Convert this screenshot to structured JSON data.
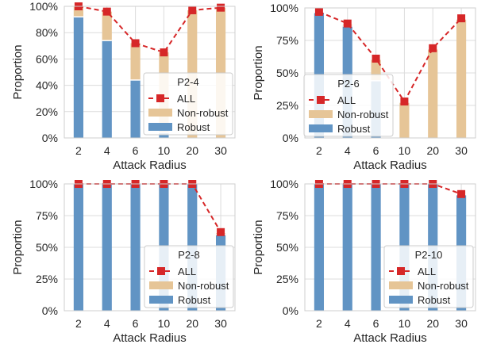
{
  "chart_data": [
    {
      "type": "bar",
      "title": "",
      "xlabel": "Attack Radius",
      "ylabel": "Proportion",
      "categories": [
        "2",
        "4",
        "6",
        "10",
        "20",
        "30"
      ],
      "ylim": [
        0,
        100
      ],
      "yticks": [
        "0%",
        "20%",
        "40%",
        "60%",
        "80%",
        "100%"
      ],
      "grid": true,
      "legend": {
        "title": "P2-4",
        "position": "center-right",
        "entries": [
          "ALL",
          "Non-robust",
          "Robust"
        ]
      },
      "series": [
        {
          "name": "Robust",
          "kind": "stacked-bar",
          "values": [
            92,
            74,
            44,
            4,
            0,
            0
          ]
        },
        {
          "name": "Non-robust",
          "kind": "stacked-bar",
          "values": [
            8,
            22,
            28,
            61,
            97,
            99
          ]
        },
        {
          "name": "ALL",
          "kind": "line",
          "values": [
            100,
            96,
            72,
            65,
            97,
            99
          ]
        }
      ]
    },
    {
      "type": "bar",
      "title": "",
      "xlabel": "Attack Radius",
      "ylabel": "Proportion",
      "categories": [
        "2",
        "4",
        "6",
        "10",
        "20",
        "30"
      ],
      "ylim": [
        0,
        100
      ],
      "yticks": [
        "0%",
        "25%",
        "50%",
        "75%",
        "100%"
      ],
      "grid": true,
      "legend": {
        "title": "P2-6",
        "position": "bottom-right",
        "entries": [
          "ALL",
          "Non-robust",
          "Robust"
        ]
      },
      "series": [
        {
          "name": "Robust",
          "kind": "stacked-bar",
          "values": [
            96,
            86,
            44,
            0,
            0,
            0
          ]
        },
        {
          "name": "Non-robust",
          "kind": "stacked-bar",
          "values": [
            0,
            1,
            16,
            27,
            68,
            91
          ]
        },
        {
          "name": "ALL",
          "kind": "line",
          "values": [
            97,
            88,
            61,
            28,
            69,
            92
          ]
        }
      ]
    },
    {
      "type": "bar",
      "title": "",
      "xlabel": "Attack Radius",
      "ylabel": "Proportion",
      "categories": [
        "2",
        "4",
        "6",
        "10",
        "20",
        "30"
      ],
      "ylim": [
        0,
        100
      ],
      "yticks": [
        "0%",
        "25%",
        "50%",
        "75%",
        "100%"
      ],
      "grid": true,
      "legend": {
        "title": "P2-8",
        "position": "bottom-right",
        "entries": [
          "ALL",
          "Non-robust",
          "Robust"
        ]
      },
      "series": [
        {
          "name": "Robust",
          "kind": "stacked-bar",
          "values": [
            100,
            100,
            100,
            100,
            100,
            60
          ]
        },
        {
          "name": "Non-robust",
          "kind": "stacked-bar",
          "values": [
            0,
            0,
            0,
            0,
            0,
            1
          ]
        },
        {
          "name": "ALL",
          "kind": "line",
          "values": [
            100,
            100,
            100,
            100,
            100,
            62
          ]
        }
      ]
    },
    {
      "type": "bar",
      "title": "",
      "xlabel": "Attack Radius",
      "ylabel": "Proportion",
      "categories": [
        "2",
        "4",
        "6",
        "10",
        "20",
        "30"
      ],
      "ylim": [
        0,
        100
      ],
      "yticks": [
        "0%",
        "25%",
        "50%",
        "75%",
        "100%"
      ],
      "grid": true,
      "legend": {
        "title": "P2-10",
        "position": "bottom-right",
        "entries": [
          "ALL",
          "Non-robust",
          "Robust"
        ]
      },
      "series": [
        {
          "name": "Robust",
          "kind": "stacked-bar",
          "values": [
            100,
            100,
            100,
            100,
            100,
            91
          ]
        },
        {
          "name": "Non-robust",
          "kind": "stacked-bar",
          "values": [
            0,
            0,
            0,
            0,
            0,
            0
          ]
        },
        {
          "name": "ALL",
          "kind": "line",
          "values": [
            100,
            100,
            100,
            100,
            100,
            92
          ]
        }
      ]
    }
  ],
  "colors": {
    "robust": "#6194c4",
    "non_robust": "#e6c597",
    "all": "#d62728",
    "grid": "#dcdcdc",
    "axis": "#cfcfcf",
    "legend_border": "#cccccc"
  }
}
